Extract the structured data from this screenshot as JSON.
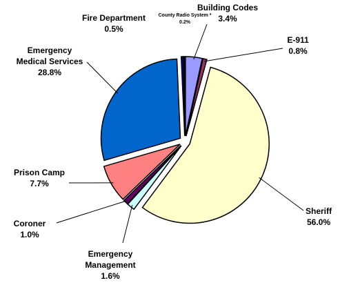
{
  "chart_data": {
    "type": "pie",
    "categories": [
      "Building Codes",
      "E-911",
      "Sheriff",
      "Emergency Management",
      "Coroner",
      "Prison Camp",
      "Emergency Medical Services",
      "Fire Department",
      "County Radio System *"
    ],
    "values": [
      3.4,
      0.8,
      56.0,
      1.6,
      1.0,
      7.7,
      28.8,
      0.5,
      0.2
    ],
    "value_labels": [
      "3.4%",
      "0.8%",
      "56.0%",
      "1.6%",
      "1.0%",
      "7.7%",
      "28.8%",
      "0.5%",
      "0.2%"
    ],
    "colors": [
      "#9999ff",
      "#993366",
      "#ffffcc",
      "#ccffff",
      "#660066",
      "#ff8080",
      "#0066cc",
      "#000080",
      "#ffffff"
    ]
  }
}
